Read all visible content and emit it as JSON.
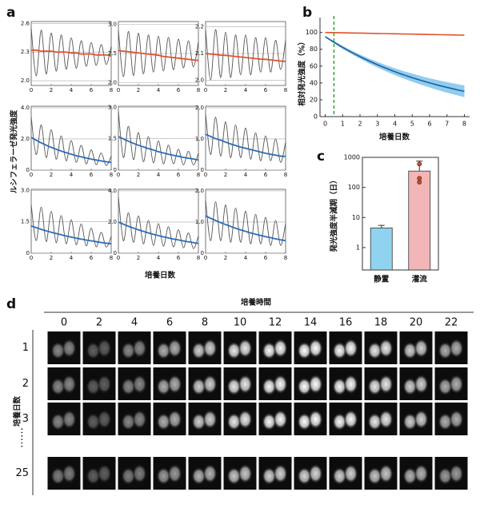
{
  "chart_data": [
    {
      "type": "small_multiples",
      "label": "a",
      "ylabel": "ルシフェラーゼ発光強度",
      "xlabel": "培養日数",
      "x": [
        0,
        0.5,
        1,
        1.5,
        2,
        2.5,
        3,
        3.5,
        4,
        4.5,
        5,
        5.5,
        6,
        6.5,
        7,
        7.5,
        8
      ],
      "xlim": [
        0,
        8
      ],
      "xticks": [
        0,
        2,
        4,
        6,
        8
      ],
      "subplots": [
        {
          "ylim": [
            1.95,
            2.62
          ],
          "yticks": [
            {
              "value": 2,
              "label": "2.0"
            },
            2.3,
            2.6
          ],
          "series": [
            {
              "color": "#555555",
              "values": [
                2.55,
                2.05,
                2.53,
                2.07,
                2.5,
                2.1,
                2.48,
                2.12,
                2.45,
                2.13,
                2.42,
                2.15,
                2.4,
                2.16,
                2.38,
                2.17,
                2.36
              ]
            },
            {
              "color": "#e0522d",
              "values": [
                2.32,
                2.32,
                2.31,
                2.31,
                2.31,
                2.3,
                2.3,
                2.3,
                2.29,
                2.29,
                2.28,
                2.28,
                2.28,
                2.27,
                2.27,
                2.27,
                2.26
              ]
            }
          ]
        },
        {
          "ylim": [
            1.95,
            3.05
          ],
          "yticks": [
            {
              "value": 2,
              "label": "2.0"
            },
            2.5,
            {
              "value": 3,
              "label": "3.0"
            }
          ],
          "series": [
            {
              "color": "#555555",
              "values": [
                2.9,
                2.1,
                2.88,
                2.12,
                2.85,
                2.15,
                2.82,
                2.18,
                2.8,
                2.2,
                2.78,
                2.22,
                2.75,
                2.25,
                2.72,
                2.27,
                2.7
              ]
            },
            {
              "color": "#e0522d",
              "values": [
                2.55,
                2.54,
                2.53,
                2.52,
                2.51,
                2.5,
                2.49,
                2.48,
                2.47,
                2.45,
                2.44,
                2.43,
                2.42,
                2.41,
                2.4,
                2.39,
                2.38
              ]
            }
          ]
        },
        {
          "ylim": [
            1.98,
            2.22
          ],
          "yticks": [
            {
              "value": 2,
              "label": "2.0"
            },
            2.1,
            2.2
          ],
          "series": [
            {
              "color": "#555555",
              "values": [
                2.19,
                2,
                2.19,
                2.01,
                2.18,
                2.01,
                2.17,
                2.02,
                2.17,
                2.02,
                2.16,
                2.03,
                2.16,
                2.03,
                2.15,
                2.04,
                2.15
              ]
            },
            {
              "color": "#e0522d",
              "values": [
                2.1,
                2.098,
                2.096,
                2.094,
                2.093,
                2.091,
                2.089,
                2.087,
                2.085,
                2.083,
                2.081,
                2.079,
                2.078,
                2.076,
                2.074,
                2.072,
                2.07
              ]
            }
          ]
        },
        {
          "ylim": [
            0,
            4.1
          ],
          "yticks": [
            0,
            {
              "value": 2,
              "label": "2.0"
            },
            {
              "value": 4,
              "label": "4.0"
            }
          ],
          "series": [
            {
              "color": "#555555",
              "values": [
                3.4,
                1,
                2.9,
                0.8,
                2.6,
                0.7,
                2.2,
                0.6,
                1.9,
                0.5,
                1.6,
                0.4,
                1.3,
                0.35,
                1.1,
                0.3,
                0.9
              ]
            },
            {
              "color": "#2a6db5",
              "values": [
                2.1,
                1.92,
                1.75,
                1.6,
                1.46,
                1.34,
                1.22,
                1.12,
                1.02,
                0.93,
                0.85,
                0.78,
                0.71,
                0.65,
                0.59,
                0.54,
                0.5
              ]
            }
          ]
        },
        {
          "ylim": [
            0,
            3.05
          ],
          "yticks": [
            0,
            1.5,
            {
              "value": 3,
              "label": "3.0"
            }
          ],
          "series": [
            {
              "color": "#555555",
              "values": [
                2.8,
                0.6,
                2.1,
                0.5,
                1.8,
                0.4,
                1.6,
                0.35,
                1.4,
                0.3,
                1.2,
                0.3,
                1,
                0.25,
                0.9,
                0.25,
                0.8
              ]
            },
            {
              "color": "#2a6db5",
              "values": [
                1.6,
                1.49,
                1.38,
                1.28,
                1.19,
                1.11,
                1.03,
                0.96,
                0.88,
                0.82,
                0.76,
                0.71,
                0.66,
                0.61,
                0.57,
                0.53,
                0.48
              ]
            }
          ]
        },
        {
          "ylim": [
            0,
            2.05
          ],
          "yticks": [
            0,
            {
              "value": 1,
              "label": "1.0"
            },
            {
              "value": 2,
              "label": "2.0"
            }
          ],
          "series": [
            {
              "color": "#555555",
              "values": [
                1.8,
                0.5,
                1.7,
                0.45,
                1.55,
                0.4,
                1.45,
                0.4,
                1.35,
                0.35,
                1.2,
                0.3,
                1.1,
                0.3,
                1,
                0.25,
                0.9
              ]
            },
            {
              "color": "#2a6db5",
              "values": [
                1.15,
                1.08,
                1.01,
                0.96,
                0.9,
                0.84,
                0.79,
                0.74,
                0.7,
                0.66,
                0.62,
                0.58,
                0.54,
                0.51,
                0.48,
                0.45,
                0.44
              ]
            }
          ]
        },
        {
          "ylim": [
            0,
            3.05
          ],
          "yticks": [
            0,
            1.5,
            {
              "value": 3,
              "label": "3.0"
            }
          ],
          "series": [
            {
              "color": "#555555",
              "values": [
                2.3,
                0.6,
                2.2,
                0.55,
                2,
                0.5,
                1.8,
                0.45,
                1.6,
                0.4,
                1.4,
                0.35,
                1.2,
                0.3,
                1,
                0.3,
                0.8
              ]
            },
            {
              "color": "#2a6db5",
              "values": [
                1.3,
                1.22,
                1.14,
                1.07,
                1,
                0.94,
                0.88,
                0.82,
                0.77,
                0.72,
                0.67,
                0.63,
                0.59,
                0.55,
                0.51,
                0.48,
                0.45
              ]
            }
          ]
        },
        {
          "ylim": [
            0,
            4.1
          ],
          "yticks": [
            0,
            {
              "value": 2,
              "label": "2.0"
            },
            {
              "value": 4,
              "label": "4.0"
            }
          ],
          "series": [
            {
              "color": "#555555",
              "values": [
                3.6,
                0.8,
                2.6,
                0.7,
                2.4,
                0.6,
                2.1,
                0.5,
                1.9,
                0.45,
                1.7,
                0.4,
                1.5,
                0.35,
                1.3,
                0.3,
                1.1
              ]
            },
            {
              "color": "#2a6db5",
              "values": [
                2,
                1.86,
                1.73,
                1.61,
                1.5,
                1.4,
                1.3,
                1.21,
                1.13,
                1.05,
                0.98,
                0.91,
                0.85,
                0.79,
                0.73,
                0.68,
                0.63
              ]
            }
          ]
        },
        {
          "ylim": [
            0,
            2.05
          ],
          "yticks": [
            0,
            {
              "value": 1,
              "label": "1.0"
            },
            {
              "value": 2,
              "label": "2.0"
            }
          ],
          "series": [
            {
              "color": "#555555",
              "values": [
                1.7,
                0.4,
                1.65,
                0.4,
                1.55,
                0.35,
                1.45,
                0.35,
                1.35,
                0.3,
                1.25,
                0.3,
                1.15,
                0.25,
                1.05,
                0.25,
                0.95
              ]
            },
            {
              "color": "#2a6db5",
              "values": [
                1.2,
                1.12,
                1.05,
                0.98,
                0.92,
                0.86,
                0.8,
                0.75,
                0.7,
                0.65,
                0.61,
                0.57,
                0.53,
                0.5,
                0.46,
                0.43,
                0.4
              ]
            }
          ]
        }
      ]
    },
    {
      "type": "line",
      "label": "b",
      "ylabel": "相対発光強度（%）",
      "xlabel": "培養日数",
      "x": [
        0,
        0.5,
        1,
        1.5,
        2,
        2.5,
        3,
        3.5,
        4,
        4.5,
        5,
        5.5,
        6,
        6.5,
        7,
        7.5,
        8
      ],
      "xlim": [
        -0.3,
        8.3
      ],
      "xticks": [
        0,
        1,
        2,
        3,
        4,
        5,
        6,
        7,
        8
      ],
      "ylim": [
        0,
        112
      ],
      "yticks": [
        0,
        20,
        40,
        60,
        80,
        100
      ],
      "vline": {
        "x": 0.5,
        "color": "#2aa02a"
      },
      "series": [
        {
          "color": "#e0522d",
          "values": [
            100,
            99.8,
            99.6,
            99.4,
            99.2,
            99,
            98.8,
            98.6,
            98.4,
            98.2,
            98,
            97.8,
            97.6,
            97.4,
            97.2,
            97,
            96.8
          ]
        },
        {
          "color": "#1d5fa3",
          "band_color": "#7cc4ec",
          "values": [
            95,
            88.4,
            82.3,
            76.6,
            71.3,
            66.3,
            61.7,
            57.4,
            53.4,
            49.7,
            46.3,
            43.1,
            40.1,
            37.3,
            34.7,
            32.3,
            30
          ],
          "lower": [
            94,
            87,
            80.5,
            74.5,
            68.8,
            63.4,
            58.4,
            53.8,
            49.4,
            45.3,
            41.5,
            38,
            34.6,
            31.4,
            28.4,
            25.7,
            23
          ],
          "upper": [
            96,
            89.8,
            84.1,
            78.7,
            73.8,
            69.2,
            65,
            61,
            57.4,
            54.1,
            51.1,
            48.2,
            45.6,
            43.2,
            41,
            38.9,
            37
          ]
        }
      ]
    },
    {
      "type": "bar",
      "label": "c",
      "ylabel": "発光強度半減期（日）",
      "log": true,
      "categories": [
        "静置",
        "灌流"
      ],
      "values": [
        4.5,
        350
      ],
      "errors": [
        1,
        400
      ],
      "colors": [
        "#8fd3f0",
        "#f2b6b8"
      ],
      "points": [
        null,
        [
          600,
          200,
          150
        ]
      ],
      "point_color": "#c0502a",
      "ylim": [
        0.18,
        1000
      ],
      "yticks": [
        1,
        10,
        100,
        1000
      ]
    }
  ],
  "image_grid": {
    "label": "d",
    "header": "培養時間",
    "row_header": "培養日数",
    "columns": [
      0,
      2,
      4,
      6,
      8,
      10,
      12,
      14,
      16,
      18,
      20,
      22
    ],
    "rows": [
      "1",
      "2",
      "3",
      "……",
      "25"
    ]
  }
}
